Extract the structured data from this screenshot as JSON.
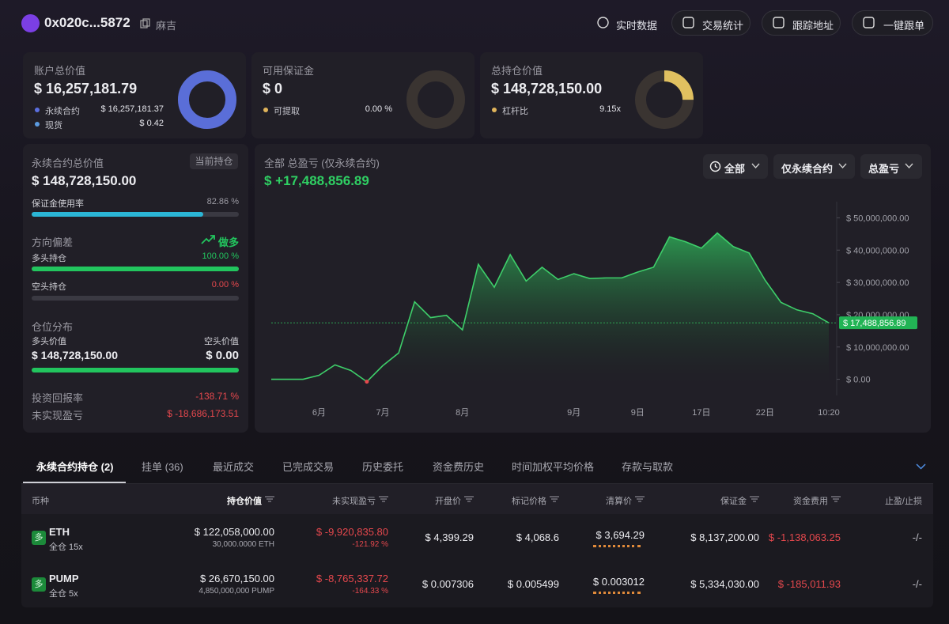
{
  "header": {
    "address": "0x020c...5872",
    "tag": "麻吉",
    "actions": [
      "实时数据",
      "交易统计",
      "跟踪地址",
      "一键跟单"
    ]
  },
  "summary_cards": [
    {
      "title": "账户总价值",
      "value": "$ 16,257,181.79",
      "rows": [
        {
          "label": "永续合约",
          "value": "$ 16,257,181.37",
          "color": "#5b6fe0"
        },
        {
          "label": "现货",
          "value": "$ 0.42",
          "color": "#5b9be0"
        }
      ],
      "ring": {
        "value": 100,
        "range": [
          0,
          100
        ],
        "color": "#5a6ed8"
      }
    },
    {
      "title": "可用保证金",
      "value": "$ 0",
      "rows": [
        {
          "label": "可提取",
          "value": "0.00 %",
          "color": "#e0b45b"
        }
      ],
      "ring": {
        "value": 0,
        "range": [
          0,
          100
        ],
        "color": "#e0c060"
      }
    },
    {
      "title": "总持仓价值",
      "value": "$ 148,728,150.00",
      "rows": [
        {
          "label": "杠杆比",
          "value": "9.15x",
          "color": "#e0b45b"
        }
      ],
      "ring": {
        "value": 25,
        "range": [
          0,
          100
        ],
        "color": "#e0c060"
      }
    }
  ],
  "perp_panel": {
    "title": "永续合约总价值",
    "badge": "当前持仓",
    "value": "$ 148,728,150.00",
    "bar_range": [
      0,
      100
    ],
    "margin_usage": {
      "label": "保证金使用率",
      "value": 82.86,
      "value_label": "82.86 %"
    },
    "direction": {
      "label": "方向偏差",
      "bias": "做多",
      "long": {
        "label": "多头持仓",
        "value": 100,
        "value_label": "100.00 %"
      },
      "short": {
        "label": "空头持仓",
        "value": 0,
        "value_label": "0.00 %"
      }
    },
    "distribution": {
      "label": "仓位分布",
      "long": {
        "label": "多头价值",
        "value": 148728150,
        "value_label": "$ 148,728,150.00"
      },
      "short": {
        "label": "空头价值",
        "value": 0,
        "value_label": "$ 0.00"
      }
    },
    "roi": {
      "label": "投资回报率",
      "value": "-138.71 %"
    },
    "unrealized_pnl": {
      "label": "未实现盈亏",
      "value": "$ -18,686,173.51"
    }
  },
  "chart_data": {
    "type": "area",
    "title": "全部 总盈亏 (仅永续合约)",
    "total": "$ +17,488,856.89",
    "filters": [
      "全部",
      "仅永续合约",
      "总盈亏"
    ],
    "categories": [
      null,
      null,
      null,
      "6月",
      null,
      null,
      null,
      "7月",
      null,
      null,
      null,
      null,
      "8月",
      null,
      null,
      null,
      null,
      null,
      null,
      "9月",
      null,
      null,
      null,
      "9日",
      null,
      null,
      null,
      "17日",
      null,
      null,
      null,
      "22日",
      null,
      null,
      null,
      "10:20"
    ],
    "values": [
      0,
      0,
      0,
      1240000,
      4460000,
      2720000,
      -740000,
      4210000,
      8170000,
      24000000,
      19100000,
      19800000,
      15300000,
      35600000,
      28500000,
      38600000,
      30400000,
      34700000,
      30900000,
      32700000,
      31200000,
      31400000,
      31400000,
      33200000,
      34700000,
      44100000,
      42600000,
      40600000,
      45300000,
      41100000,
      39100000,
      30700000,
      23800000,
      21500000,
      20300000,
      17488856.89
    ],
    "color": "#3ecf6a",
    "ylim": [
      -5000000,
      55000000
    ],
    "yticks": [
      {
        "value": 0,
        "label": "$ 0.00"
      },
      {
        "value": 10000000,
        "label": "$ 10,000,000.00"
      },
      {
        "value": 20000000,
        "label": "$ 20,000,000.00"
      },
      {
        "value": 30000000,
        "label": "$ 30,000,000.00"
      },
      {
        "value": 40000000,
        "label": "$ 40,000,000.00"
      },
      {
        "value": 50000000,
        "label": "$ 50,000,000.00"
      }
    ],
    "current": {
      "value": 17488856.89,
      "label": "$ 17,488,856.89"
    }
  },
  "positions_table": {
    "tabs": [
      "永续合约持仓 (2)",
      "挂单 (36)",
      "最近成交",
      "已完成交易",
      "历史委托",
      "资金费历史",
      "时间加权平均价格",
      "存款与取款"
    ],
    "active_tab": 0,
    "columns": [
      "币种",
      "持仓价值",
      "未实现盈亏",
      "开盘价",
      "标记价格",
      "清算价",
      "保证金",
      "资金费用",
      "止盈/止损"
    ],
    "rows": [
      {
        "side": "多",
        "symbol": "ETH",
        "margin_mode": "全仓 15x",
        "position_value": "$ 122,058,000.00",
        "size": "30,000.0000 ETH",
        "unrealized_pnl": "$ -9,920,835.80",
        "pnl_pct": "-121.92 %",
        "entry_price": "$ 4,399.29",
        "mark_price": "$ 4,068.6",
        "liq_price": "$ 3,694.29",
        "margin": "$ 8,137,200.00",
        "funding": "$ -1,138,063.25",
        "tp_sl": "-/-"
      },
      {
        "side": "多",
        "symbol": "PUMP",
        "margin_mode": "全仓 5x",
        "position_value": "$ 26,670,150.00",
        "size": "4,850,000,000 PUMP",
        "unrealized_pnl": "$ -8,765,337.72",
        "pnl_pct": "-164.33 %",
        "entry_price": "$ 0.007306",
        "mark_price": "$ 0.005499",
        "liq_price": "$ 0.003012",
        "margin": "$ 5,334,030.00",
        "funding": "$ -185,011.93",
        "tp_sl": "-/-"
      }
    ]
  }
}
